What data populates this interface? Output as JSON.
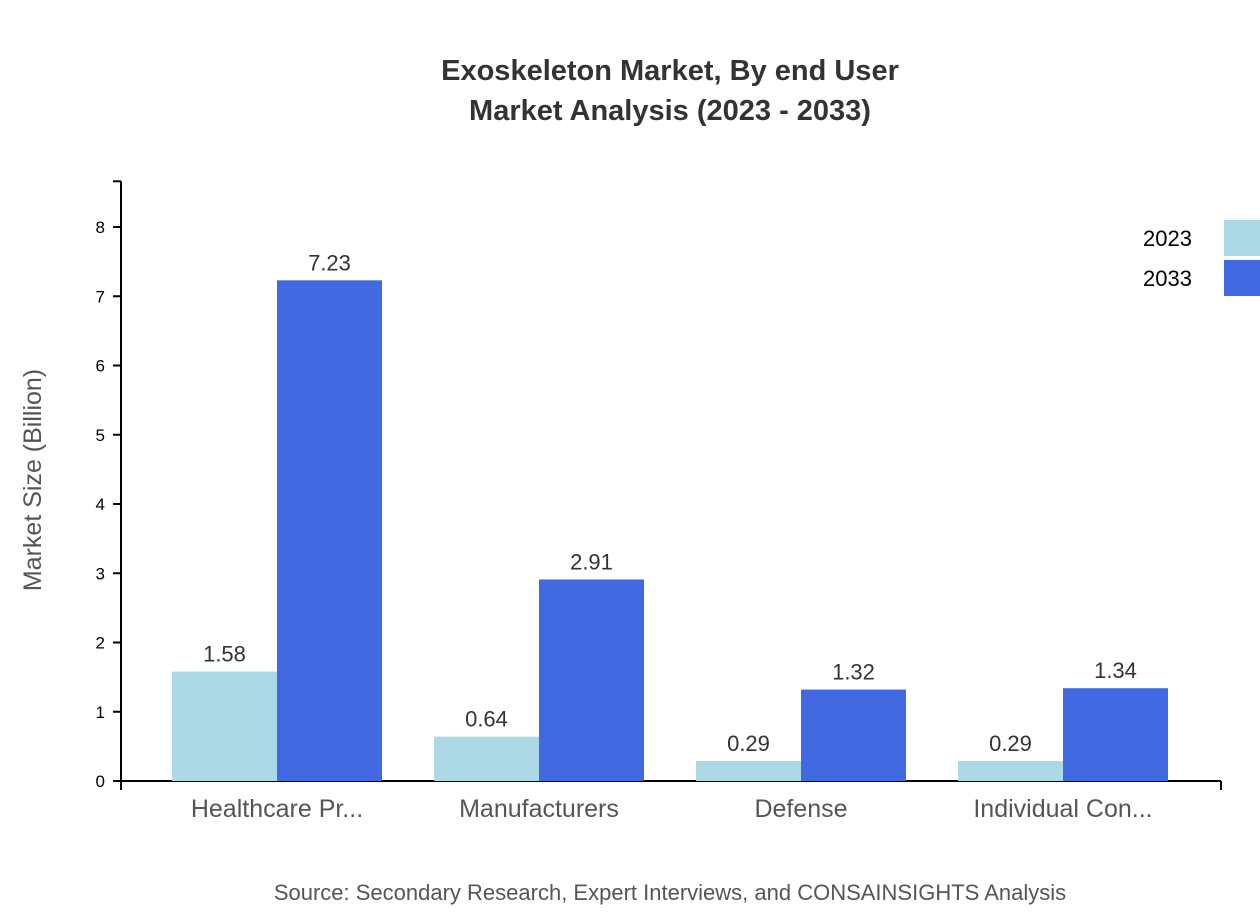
{
  "chart_data": {
    "type": "bar",
    "title": "Exoskeleton Market, By end User",
    "subtitle": "Market Analysis (2023 - 2033)",
    "ylabel": "Market Size (Billion)",
    "xlabel": "",
    "ylim": [
      0,
      8.66
    ],
    "yticks": [
      "0",
      "1",
      "2",
      "3",
      "4",
      "5",
      "6",
      "7",
      "8"
    ],
    "categories": [
      "Healthcare Pr...",
      "Manufacturers",
      "Defense",
      "Individual Con..."
    ],
    "series": [
      {
        "name": "2023",
        "color": "#ADD8E6",
        "values": [
          1.58,
          0.64,
          0.29,
          0.29
        ],
        "labels": [
          "1.58",
          "0.64",
          "0.29",
          "0.29"
        ]
      },
      {
        "name": "2033",
        "color": "#4169E1",
        "values": [
          7.23,
          2.91,
          1.32,
          1.34
        ],
        "labels": [
          "7.23",
          "2.91",
          "1.32",
          "1.34"
        ]
      }
    ],
    "legend_position": "top-right",
    "grid": false,
    "source": "Source: Secondary Research, Expert Interviews, and CONSAINSIGHTS Analysis"
  }
}
